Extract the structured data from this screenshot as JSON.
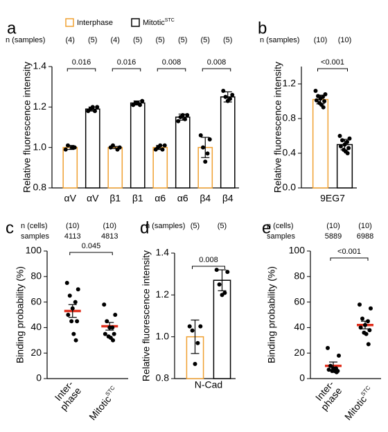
{
  "chart_data": [
    {
      "type": "bar",
      "panel": "a",
      "legend": [
        {
          "name": "Interphase",
          "color": "#f0a030"
        },
        {
          "name": "Mitotic",
          "superscript": "STC",
          "color": "#000000"
        }
      ],
      "header": [
        {
          "label": "n (samples)",
          "values": [
            "(4)",
            "(5)",
            "(4)",
            "(5)",
            "(5)",
            "(5)",
            "(5)",
            "(5)"
          ]
        }
      ],
      "categories": [
        "αV",
        "αV",
        "β1",
        "β1",
        "α6",
        "α6",
        "β4",
        "β4"
      ],
      "colors": [
        "#f0a030",
        "#000000",
        "#f0a030",
        "#000000",
        "#f0a030",
        "#000000",
        "#f0a030",
        "#000000"
      ],
      "values": [
        1.0,
        1.19,
        1.0,
        1.22,
        1.0,
        1.15,
        1.0,
        1.25
      ],
      "errors": [
        0.01,
        0.01,
        0.005,
        0.01,
        0.01,
        0.015,
        0.05,
        0.025
      ],
      "points": [
        [
          0.99,
          1.0,
          1.01,
          1.0
        ],
        [
          1.18,
          1.2,
          1.19,
          1.18,
          1.2
        ],
        [
          1.0,
          1.0,
          1.01,
          0.99
        ],
        [
          1.21,
          1.23,
          1.22,
          1.21,
          1.22
        ],
        [
          0.99,
          1.01,
          1.0,
          0.99,
          1.01
        ],
        [
          1.13,
          1.16,
          1.15,
          1.14,
          1.16
        ],
        [
          1.06,
          1.04,
          1.0,
          0.97,
          0.93
        ],
        [
          1.28,
          1.26,
          1.25,
          1.24,
          1.23
        ]
      ],
      "p_values": [
        "0.016",
        "0.016",
        "0.008",
        "0.008"
      ],
      "ylabel": "Relative fluorescence intensity",
      "ylim": [
        0.8,
        1.4
      ],
      "yticks": [
        0.8,
        {
          "value": 1,
          "label": "1.0"
        },
        1.2,
        1.4
      ]
    },
    {
      "type": "bar",
      "panel": "b",
      "header": [
        {
          "label": "n (samples)",
          "values": [
            "(10)",
            "(10)"
          ]
        }
      ],
      "xlabel": "9EG7",
      "colors": [
        "#f0a030",
        "#000000"
      ],
      "values": [
        1.02,
        0.5
      ],
      "errors": [
        0.05,
        0.06
      ],
      "points": [
        [
          1.12,
          1.08,
          1.06,
          1.05,
          1.03,
          1.01,
          1.0,
          0.98,
          0.96,
          0.93
        ],
        [
          0.6,
          0.57,
          0.55,
          0.53,
          0.5,
          0.48,
          0.46,
          0.44,
          0.42,
          0.4
        ]
      ],
      "p_values": [
        "<0.001"
      ],
      "ylabel": "Relative fluorescence intensity",
      "ylim": [
        0,
        1.4
      ],
      "yticks": [
        {
          "value": 0,
          "label": "0.0"
        },
        0.4,
        0.8,
        1.2
      ]
    },
    {
      "type": "dot",
      "panel": "c",
      "header": [
        {
          "label": "n (cells)",
          "values": [
            "(10)",
            "(10)"
          ]
        },
        {
          "label": "samples",
          "values": [
            "4113",
            "4813"
          ]
        }
      ],
      "categories": [
        {
          "lines": [
            "Inter-",
            "phase"
          ]
        },
        {
          "lines": [
            "Mitotic"
          ],
          "sup": "STC"
        }
      ],
      "values": [
        53,
        41
      ],
      "errors": [
        5,
        3
      ],
      "mean_color": "#e0301e",
      "points": [
        [
          75,
          70,
          65,
          60,
          55,
          50,
          45,
          45,
          35,
          30
        ],
        [
          58,
          50,
          45,
          40,
          40,
          35,
          35,
          33,
          32,
          30
        ]
      ],
      "p_values": [
        "0.045"
      ],
      "ylabel": "Binding probability (%)",
      "ylim": [
        0,
        100
      ],
      "yticks": [
        0,
        20,
        40,
        60,
        80,
        100
      ]
    },
    {
      "type": "bar",
      "panel": "d",
      "header": [
        {
          "label": "n (samples)",
          "values": [
            "(5)",
            "(5)"
          ]
        }
      ],
      "xlabel": "N-Cad",
      "colors": [
        "#f0a030",
        "#000000"
      ],
      "values": [
        1.0,
        1.27
      ],
      "errors": [
        0.08,
        0.05
      ],
      "points": [
        [
          1.05,
          1.05,
          1.03,
          0.97,
          0.87
        ],
        [
          1.32,
          1.31,
          1.25,
          1.21,
          1.2
        ]
      ],
      "p_values": [
        "0.008"
      ],
      "ylabel": "Relative fluorescence intensity",
      "ylim": [
        0.8,
        1.4
      ],
      "yticks": [
        0.8,
        {
          "value": 1,
          "label": "1.0"
        },
        1.2,
        1.4
      ]
    },
    {
      "type": "dot",
      "panel": "e",
      "header": [
        {
          "label": "n (cells)",
          "values": [
            "(10)",
            "(10)"
          ]
        },
        {
          "label": "samples",
          "values": [
            "5889",
            "6988"
          ]
        }
      ],
      "categories": [
        {
          "lines": [
            "Inter-",
            "phase"
          ]
        },
        {
          "lines": [
            "Mitotic"
          ],
          "sup": "STC"
        }
      ],
      "values": [
        10,
        42
      ],
      "errors": [
        3,
        3
      ],
      "mean_color": "#e0301e",
      "points": [
        [
          24,
          18,
          10,
          8,
          8,
          7,
          6,
          6,
          6,
          5
        ],
        [
          58,
          55,
          47,
          45,
          42,
          40,
          38,
          36,
          35,
          27
        ]
      ],
      "p_values": [
        "<0.001"
      ],
      "ylabel": "Binding probability (%)",
      "ylim": [
        0,
        100
      ],
      "yticks": [
        0,
        20,
        40,
        60,
        80,
        100
      ]
    }
  ]
}
